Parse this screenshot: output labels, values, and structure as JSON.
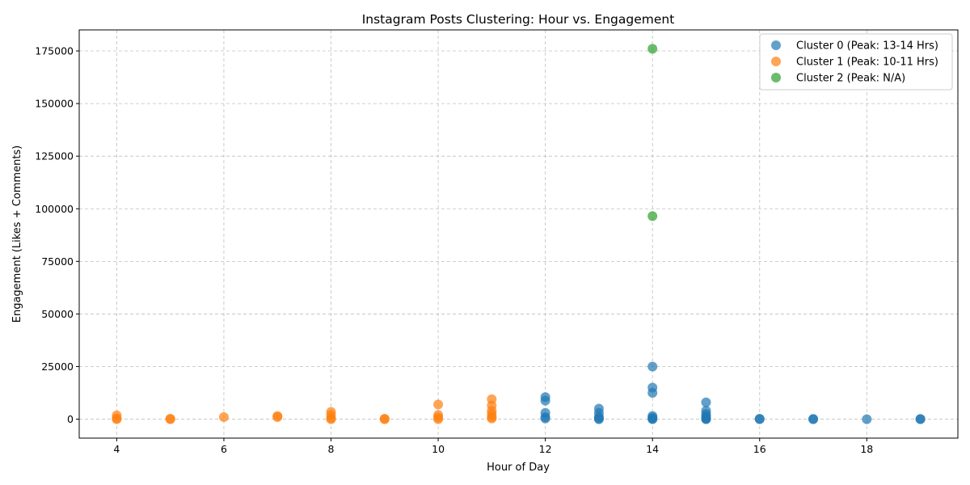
{
  "chart_data": {
    "type": "scatter",
    "title": "Instagram Posts Clustering: Hour vs. Engagement",
    "xlabel": "Hour of Day",
    "ylabel": "Engagement (Likes + Comments)",
    "xlim": [
      3.3,
      19.7
    ],
    "ylim": [
      -9000,
      185000
    ],
    "xticks": [
      4,
      6,
      8,
      10,
      12,
      14,
      16,
      18
    ],
    "yticks": [
      0,
      25000,
      50000,
      75000,
      100000,
      125000,
      150000,
      175000
    ],
    "grid": true,
    "legend_position": "top-right",
    "series": [
      {
        "name": "Cluster 0 (Peak: 13-14 Hrs)",
        "color": "#1f77b4",
        "points": [
          [
            12,
            10500
          ],
          [
            12,
            8800
          ],
          [
            12,
            3000
          ],
          [
            12,
            1000
          ],
          [
            12,
            300
          ],
          [
            13,
            5000
          ],
          [
            13,
            3000
          ],
          [
            13,
            1200
          ],
          [
            13,
            300
          ],
          [
            13,
            0
          ],
          [
            14,
            25000
          ],
          [
            14,
            15000
          ],
          [
            14,
            12500
          ],
          [
            14,
            1500
          ],
          [
            14,
            800
          ],
          [
            14,
            200
          ],
          [
            14,
            0
          ],
          [
            15,
            8000
          ],
          [
            15,
            4000
          ],
          [
            15,
            2500
          ],
          [
            15,
            1500
          ],
          [
            15,
            500
          ],
          [
            15,
            100
          ],
          [
            15,
            0
          ],
          [
            16,
            200
          ],
          [
            16,
            0
          ],
          [
            17,
            100
          ],
          [
            17,
            0
          ],
          [
            18,
            0
          ],
          [
            19,
            100
          ],
          [
            19,
            0
          ]
        ]
      },
      {
        "name": "Cluster 1 (Peak: 10-11 Hrs)",
        "color": "#ff7f0e",
        "points": [
          [
            4,
            1800
          ],
          [
            4,
            400
          ],
          [
            4,
            0
          ],
          [
            5,
            200
          ],
          [
            5,
            0
          ],
          [
            6,
            1000
          ],
          [
            7,
            1500
          ],
          [
            7,
            1000
          ],
          [
            8,
            3500
          ],
          [
            8,
            2000
          ],
          [
            8,
            500
          ],
          [
            8,
            0
          ],
          [
            9,
            200
          ],
          [
            9,
            0
          ],
          [
            10,
            7000
          ],
          [
            10,
            2000
          ],
          [
            10,
            800
          ],
          [
            10,
            0
          ],
          [
            11,
            9500
          ],
          [
            11,
            6500
          ],
          [
            11,
            4000
          ],
          [
            11,
            2500
          ],
          [
            11,
            1000
          ],
          [
            11,
            300
          ]
        ]
      },
      {
        "name": "Cluster 2 (Peak: N/A)",
        "color": "#2ca02c",
        "points": [
          [
            14,
            176000
          ],
          [
            14,
            96500
          ]
        ]
      }
    ]
  }
}
